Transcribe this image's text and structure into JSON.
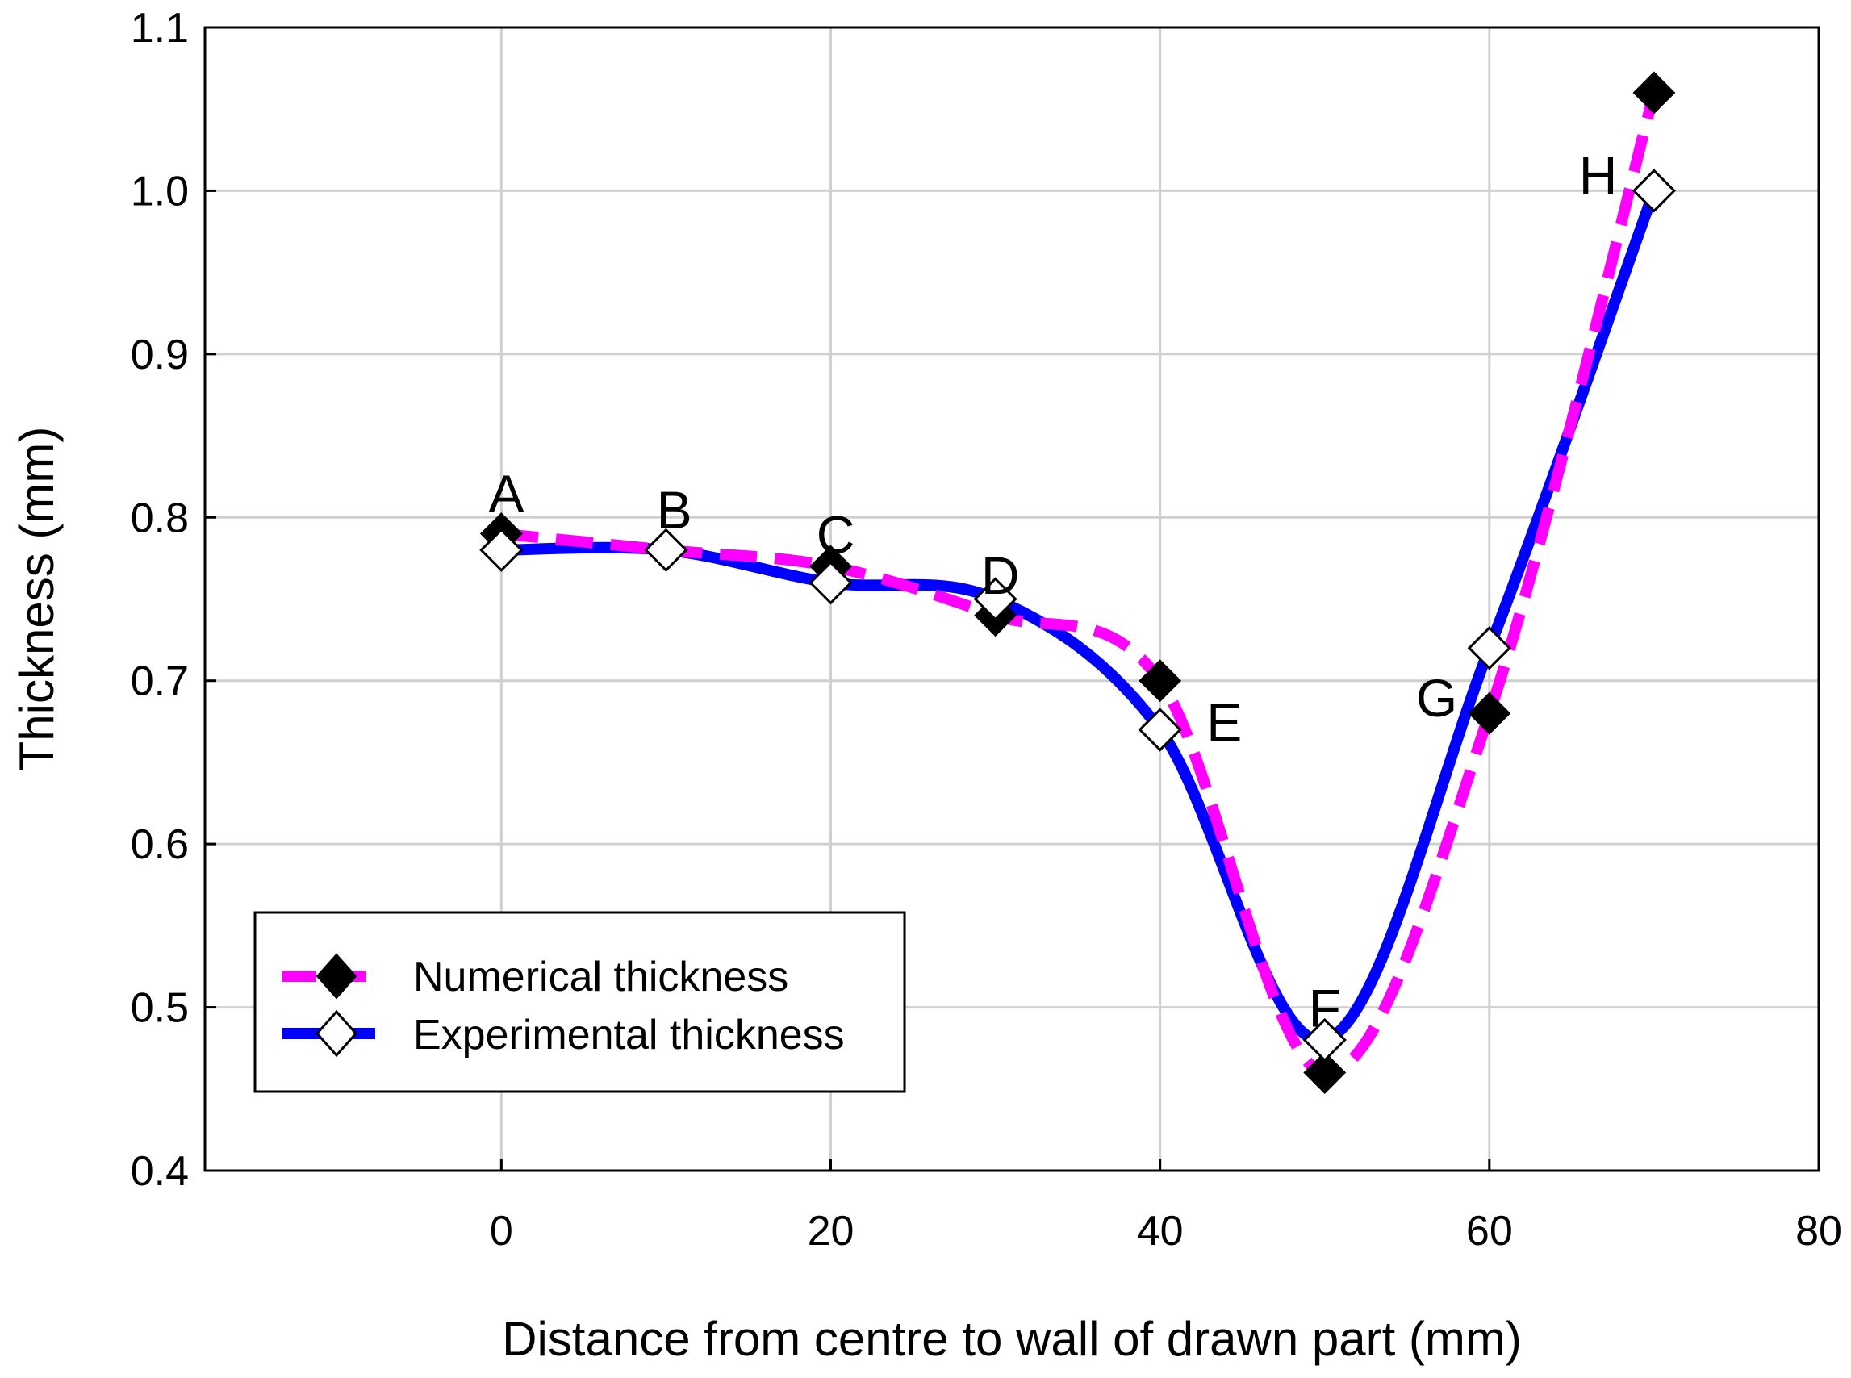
{
  "chart_data": {
    "type": "line",
    "title": "",
    "xlabel": "Distance from centre to wall of drawn part (mm)",
    "ylabel": "Thickness (mm)",
    "xlim": [
      -18,
      80
    ],
    "ylim": [
      0.4,
      1.1
    ],
    "xticks": [
      0,
      20,
      40,
      60,
      80
    ],
    "xtick_labels": [
      "0",
      "20",
      "40",
      "60",
      "80"
    ],
    "yticks": [
      0.4,
      0.5,
      0.6,
      0.7,
      0.8,
      0.9,
      1.0,
      1.1
    ],
    "ytick_labels": [
      "0.4",
      "0.5",
      "0.6",
      "0.7",
      "0.8",
      "0.9",
      "1.0",
      "1.1"
    ],
    "grid": true,
    "legend_position": "lower-left",
    "series": [
      {
        "name": "Numerical thickness",
        "color": "#ff00ff",
        "line_style": "dashed",
        "marker": "filled-diamond",
        "marker_color": "#000000",
        "x": [
          0,
          10,
          20,
          30,
          40,
          50,
          60,
          70
        ],
        "y": [
          0.79,
          0.78,
          0.77,
          0.74,
          0.7,
          0.46,
          0.68,
          1.06
        ]
      },
      {
        "name": "Experimental thickness",
        "color": "#0000ff",
        "line_style": "solid",
        "marker": "open-diamond",
        "marker_color": "#ffffff",
        "x": [
          0,
          10,
          20,
          30,
          40,
          50,
          60,
          70
        ],
        "y": [
          0.78,
          0.78,
          0.76,
          0.75,
          0.67,
          0.48,
          0.72,
          1.0
        ]
      }
    ],
    "annotations": [
      {
        "text": "A",
        "x": 0.3,
        "y": 0.815
      },
      {
        "text": "B",
        "x": 10.5,
        "y": 0.805
      },
      {
        "text": "C",
        "x": 20.3,
        "y": 0.79
      },
      {
        "text": "D",
        "x": 30.3,
        "y": 0.765
      },
      {
        "text": "E",
        "x": 43.9,
        "y": 0.675
      },
      {
        "text": "F",
        "x": 50.0,
        "y": 0.5
      },
      {
        "text": "G",
        "x": 56.8,
        "y": 0.69
      },
      {
        "text": "H",
        "x": 66.6,
        "y": 1.01
      }
    ]
  }
}
